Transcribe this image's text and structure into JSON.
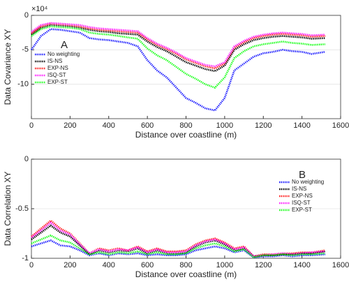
{
  "chart_data": [
    {
      "type": "line",
      "ylabel": "Data Covariance XY",
      "xlabel": "Distance over coastline (m)",
      "y_exponent": "×10⁴",
      "annotation": "A",
      "xlim": [
        0,
        1600
      ],
      "xticks": [
        0,
        200,
        400,
        600,
        800,
        1000,
        1200,
        1400,
        1600
      ],
      "ylim": [
        -15,
        0
      ],
      "yticks": [
        0,
        -5,
        -10
      ],
      "grid": true,
      "legend": "center left",
      "x": [
        0,
        50,
        100,
        150,
        200,
        250,
        300,
        350,
        400,
        450,
        500,
        550,
        600,
        650,
        700,
        750,
        800,
        850,
        900,
        950,
        1000,
        1050,
        1100,
        1150,
        1200,
        1250,
        1300,
        1350,
        1400,
        1450,
        1520
      ],
      "series": [
        {
          "name": "No weighting",
          "color": "#1a1aff",
          "values": [
            -5,
            -3,
            -2,
            -2.1,
            -2.3,
            -2.5,
            -3.3,
            -3.5,
            -3.6,
            -3.8,
            -4,
            -4.5,
            -6.5,
            -8,
            -9,
            -10.5,
            -12,
            -12.7,
            -13.5,
            -13.8,
            -12,
            -8,
            -7,
            -6,
            -5.5,
            -5.3,
            -5,
            -5.2,
            -5.3,
            -5.6,
            -5.3
          ]
        },
        {
          "name": "IS-NS",
          "color": "#000000",
          "values": [
            -2.8,
            -1.8,
            -1.4,
            -1.5,
            -1.6,
            -1.8,
            -2.1,
            -2.3,
            -2.4,
            -2.6,
            -2.7,
            -2.8,
            -3.8,
            -4.6,
            -5.2,
            -6,
            -6.8,
            -7.3,
            -7.8,
            -8.1,
            -7.3,
            -5,
            -4.2,
            -3.6,
            -3.3,
            -3.1,
            -3,
            -3.1,
            -3.2,
            -3.4,
            -3.3
          ]
        },
        {
          "name": "EXP-NS",
          "color": "#ff1a1a",
          "values": [
            -2.6,
            -1.6,
            -1.2,
            -1.3,
            -1.4,
            -1.6,
            -1.9,
            -2.1,
            -2.2,
            -2.3,
            -2.4,
            -2.5,
            -3.5,
            -4.3,
            -4.9,
            -5.6,
            -6.4,
            -6.9,
            -7.4,
            -7.7,
            -7,
            -4.7,
            -3.9,
            -3.3,
            -3,
            -2.8,
            -2.7,
            -2.8,
            -2.9,
            -3.1,
            -3
          ]
        },
        {
          "name": "ISQ-ST",
          "color": "#ff1aff",
          "values": [
            -2.4,
            -1.4,
            -1.1,
            -1.2,
            -1.3,
            -1.4,
            -1.7,
            -1.9,
            -2,
            -2.1,
            -2.2,
            -2.3,
            -3.3,
            -4.1,
            -4.7,
            -5.4,
            -6.2,
            -6.7,
            -7.2,
            -7.4,
            -6.8,
            -4.5,
            -3.7,
            -3.1,
            -2.8,
            -2.6,
            -2.5,
            -2.6,
            -2.7,
            -2.9,
            -2.8
          ]
        },
        {
          "name": "EXP-ST",
          "color": "#1aff1a",
          "values": [
            -3,
            -2,
            -1.6,
            -1.7,
            -1.8,
            -2,
            -2.5,
            -2.7,
            -2.8,
            -3,
            -3.2,
            -3.4,
            -4.8,
            -5.8,
            -6.5,
            -7.5,
            -8.5,
            -9.2,
            -10,
            -10.5,
            -9,
            -6.2,
            -5.2,
            -4.5,
            -4.2,
            -4,
            -3.8,
            -4,
            -4.1,
            -4.3,
            -4.2
          ]
        }
      ]
    },
    {
      "type": "line",
      "ylabel": "Data Correlation XY",
      "xlabel": "Distance over coastline (m)",
      "annotation": "B",
      "xlim": [
        0,
        1600
      ],
      "xticks": [
        0,
        200,
        400,
        600,
        800,
        1000,
        1200,
        1400,
        1600
      ],
      "ylim": [
        -1,
        0
      ],
      "yticks": [
        0,
        -0.5,
        -1
      ],
      "grid": true,
      "legend": "center right",
      "x": [
        0,
        50,
        100,
        150,
        200,
        250,
        300,
        350,
        400,
        450,
        500,
        550,
        600,
        650,
        700,
        750,
        800,
        850,
        900,
        950,
        1000,
        1050,
        1100,
        1150,
        1200,
        1250,
        1300,
        1350,
        1400,
        1450,
        1520
      ],
      "series": [
        {
          "name": "No weighting",
          "color": "#1a1aff",
          "values": [
            -0.88,
            -0.85,
            -0.82,
            -0.87,
            -0.88,
            -0.92,
            -0.97,
            -0.95,
            -0.97,
            -0.95,
            -0.96,
            -0.95,
            -0.97,
            -0.96,
            -0.97,
            -0.97,
            -0.96,
            -0.92,
            -0.9,
            -0.88,
            -0.9,
            -0.94,
            -0.92,
            -0.99,
            -0.98,
            -0.98,
            -0.97,
            -0.98,
            -0.97,
            -0.97,
            -0.96
          ]
        },
        {
          "name": "IS-NS",
          "color": "#000000",
          "values": [
            -0.81,
            -0.74,
            -0.67,
            -0.74,
            -0.78,
            -0.87,
            -0.96,
            -0.92,
            -0.94,
            -0.92,
            -0.93,
            -0.9,
            -0.95,
            -0.92,
            -0.95,
            -0.95,
            -0.94,
            -0.88,
            -0.84,
            -0.82,
            -0.86,
            -0.92,
            -0.9,
            -0.98,
            -0.97,
            -0.97,
            -0.96,
            -0.96,
            -0.95,
            -0.95,
            -0.93
          ]
        },
        {
          "name": "EXP-NS",
          "color": "#ff1a1a",
          "values": [
            -0.78,
            -0.7,
            -0.62,
            -0.7,
            -0.75,
            -0.85,
            -0.95,
            -0.9,
            -0.92,
            -0.9,
            -0.92,
            -0.88,
            -0.93,
            -0.9,
            -0.93,
            -0.93,
            -0.92,
            -0.86,
            -0.82,
            -0.8,
            -0.84,
            -0.9,
            -0.88,
            -0.98,
            -0.96,
            -0.96,
            -0.95,
            -0.95,
            -0.94,
            -0.94,
            -0.92
          ]
        },
        {
          "name": "ISQ-ST",
          "color": "#ff1aff",
          "values": [
            -0.79,
            -0.72,
            -0.64,
            -0.72,
            -0.76,
            -0.86,
            -0.95,
            -0.91,
            -0.93,
            -0.91,
            -0.92,
            -0.89,
            -0.94,
            -0.91,
            -0.94,
            -0.94,
            -0.93,
            -0.87,
            -0.83,
            -0.81,
            -0.85,
            -0.91,
            -0.89,
            -0.98,
            -0.97,
            -0.96,
            -0.95,
            -0.96,
            -0.95,
            -0.94,
            -0.93
          ]
        },
        {
          "name": "EXP-ST",
          "color": "#1aff1a",
          "values": [
            -0.85,
            -0.81,
            -0.77,
            -0.82,
            -0.84,
            -0.9,
            -0.96,
            -0.94,
            -0.96,
            -0.94,
            -0.95,
            -0.93,
            -0.96,
            -0.94,
            -0.96,
            -0.96,
            -0.95,
            -0.9,
            -0.87,
            -0.85,
            -0.88,
            -0.93,
            -0.91,
            -0.99,
            -0.97,
            -0.97,
            -0.96,
            -0.97,
            -0.96,
            -0.96,
            -0.95
          ]
        }
      ]
    }
  ]
}
